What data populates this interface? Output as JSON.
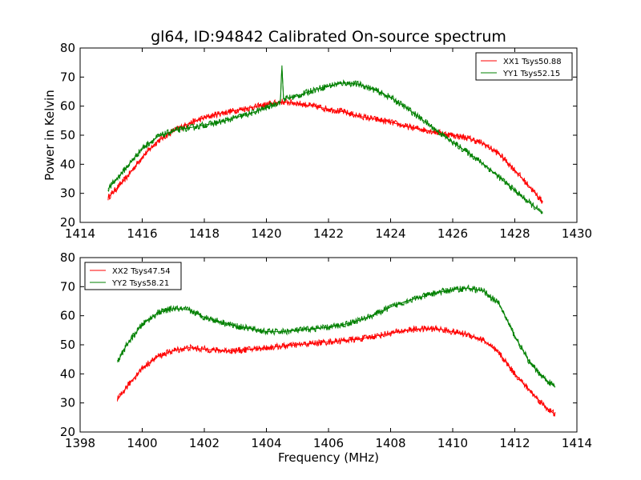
{
  "chart_data": [
    {
      "type": "line",
      "title": "gl64, ID:94842 Calibrated On-source spectrum",
      "xlabel": "",
      "ylabel": "Power in Kelvin",
      "xlim": [
        1414,
        1430
      ],
      "ylim": [
        20,
        80
      ],
      "xticks": [
        1414,
        1416,
        1418,
        1420,
        1422,
        1424,
        1426,
        1428,
        1430
      ],
      "yticks": [
        20,
        30,
        40,
        50,
        60,
        70,
        80
      ],
      "grid": false,
      "legend": "top-right",
      "series": [
        {
          "name": "XX1 Tsys50.88",
          "color": "#ff0000",
          "x": [
            1414.9,
            1415.5,
            1416.0,
            1416.5,
            1417.0,
            1417.5,
            1418.0,
            1418.5,
            1419.0,
            1419.5,
            1420.0,
            1420.5,
            1421.0,
            1421.5,
            1422.0,
            1422.5,
            1423.0,
            1423.5,
            1424.0,
            1424.5,
            1425.0,
            1425.5,
            1426.0,
            1426.5,
            1427.0,
            1427.5,
            1428.0,
            1428.5,
            1428.9
          ],
          "y": [
            28.5,
            35.5,
            42.5,
            48.0,
            51.5,
            54.0,
            56.0,
            57.5,
            58.5,
            59.5,
            60.5,
            61.5,
            61.0,
            60.0,
            59.0,
            58.0,
            56.5,
            55.5,
            54.5,
            53.0,
            52.0,
            51.0,
            50.0,
            49.0,
            47.0,
            43.5,
            38.0,
            32.0,
            27.0
          ]
        },
        {
          "name": "YY1 Tsys52.15",
          "color": "#008000",
          "x": [
            1414.9,
            1415.5,
            1416.0,
            1416.5,
            1417.0,
            1417.5,
            1418.0,
            1418.5,
            1419.0,
            1419.5,
            1420.0,
            1420.45,
            1420.5,
            1420.55,
            1421.0,
            1421.5,
            1422.0,
            1422.5,
            1423.0,
            1423.5,
            1424.0,
            1424.5,
            1425.0,
            1425.5,
            1426.0,
            1426.5,
            1427.0,
            1427.5,
            1428.0,
            1428.5,
            1428.9
          ],
          "y": [
            31.5,
            39.0,
            45.5,
            49.5,
            51.5,
            52.5,
            53.5,
            54.5,
            56.0,
            57.5,
            59.5,
            61.5,
            74.0,
            62.5,
            63.5,
            65.5,
            67.0,
            68.0,
            67.5,
            65.5,
            63.0,
            59.5,
            55.5,
            51.5,
            47.5,
            44.0,
            40.0,
            35.5,
            31.0,
            26.5,
            23.0
          ]
        }
      ]
    },
    {
      "type": "line",
      "title": "",
      "xlabel": "Frequency (MHz)",
      "ylabel": "",
      "xlim": [
        1398,
        1414
      ],
      "ylim": [
        20,
        80
      ],
      "xticks": [
        1398,
        1400,
        1402,
        1404,
        1406,
        1408,
        1410,
        1412,
        1414
      ],
      "yticks": [
        20,
        30,
        40,
        50,
        60,
        70,
        80
      ],
      "grid": false,
      "legend": "top-left",
      "series": [
        {
          "name": "XX2 Tsys47.54",
          "color": "#ff0000",
          "x": [
            1399.2,
            1399.5,
            1400.0,
            1400.5,
            1401.0,
            1401.5,
            1402.0,
            1402.5,
            1403.0,
            1403.5,
            1404.0,
            1404.5,
            1405.0,
            1405.5,
            1406.0,
            1406.5,
            1407.0,
            1407.5,
            1408.0,
            1408.5,
            1409.0,
            1409.5,
            1410.0,
            1410.5,
            1411.0,
            1411.5,
            1412.0,
            1412.5,
            1413.0,
            1413.3
          ],
          "y": [
            31.0,
            35.5,
            42.0,
            46.0,
            48.0,
            49.0,
            48.5,
            48.0,
            48.0,
            48.5,
            49.0,
            49.5,
            50.0,
            50.5,
            51.0,
            51.5,
            52.0,
            53.0,
            54.0,
            55.0,
            55.5,
            55.5,
            54.5,
            53.5,
            51.5,
            47.0,
            40.0,
            34.0,
            28.5,
            26.0
          ]
        },
        {
          "name": "YY2 Tsys58.21",
          "color": "#008000",
          "x": [
            1399.2,
            1399.5,
            1400.0,
            1400.5,
            1401.0,
            1401.5,
            1402.0,
            1402.5,
            1403.0,
            1403.5,
            1404.0,
            1404.5,
            1405.0,
            1405.5,
            1406.0,
            1406.5,
            1407.0,
            1407.5,
            1408.0,
            1408.5,
            1409.0,
            1409.5,
            1410.0,
            1410.5,
            1411.0,
            1411.5,
            1412.0,
            1412.5,
            1413.0,
            1413.3
          ],
          "y": [
            44.0,
            50.0,
            57.0,
            61.0,
            62.5,
            62.0,
            59.5,
            58.0,
            56.5,
            55.5,
            54.5,
            54.5,
            55.0,
            55.5,
            56.0,
            57.0,
            58.5,
            60.5,
            63.0,
            65.0,
            66.5,
            68.0,
            69.0,
            69.5,
            68.5,
            64.0,
            53.0,
            43.5,
            38.0,
            35.5
          ]
        }
      ]
    }
  ]
}
